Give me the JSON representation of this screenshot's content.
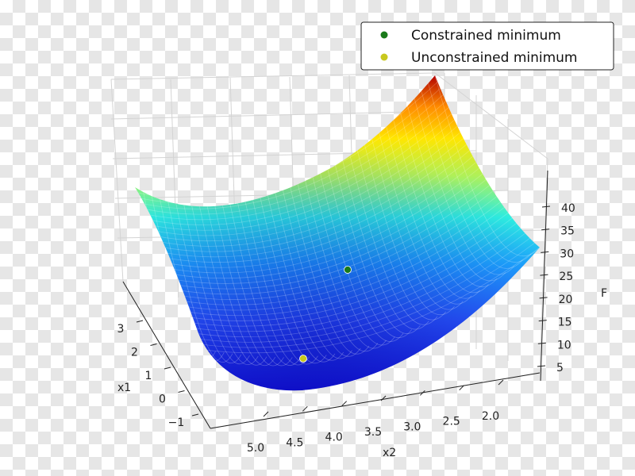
{
  "chart_data": {
    "type": "surface3d",
    "title": "",
    "xlabel": "x2",
    "ylabel": "x1",
    "zlabel": "F",
    "x2_ticks": [
      "5.0",
      "4.5",
      "4.0",
      "3.5",
      "3.0",
      "2.5",
      "2.0"
    ],
    "x1_ticks": [
      "3",
      "2",
      "1",
      "0",
      "−1"
    ],
    "z_ticks": [
      "5",
      "10",
      "15",
      "20",
      "25",
      "30",
      "35",
      "40"
    ],
    "x2_range": [
      1.5,
      5.3
    ],
    "x1_range": [
      -1.5,
      3.5
    ],
    "z_range": [
      0,
      45
    ],
    "colormap": "jet",
    "legend_position": "top-right",
    "series": [
      {
        "name": "Constrained minimum",
        "color": "#1a7a1a"
      },
      {
        "name": "Unconstrained minimum",
        "color": "#c8c81e"
      }
    ],
    "points": [
      {
        "series": "Constrained minimum",
        "x2": 3.5,
        "x1": 1.0,
        "z": 6.5
      },
      {
        "series": "Unconstrained minimum",
        "x2": 4.0,
        "x1": 0.5,
        "z": 1.0
      }
    ]
  }
}
